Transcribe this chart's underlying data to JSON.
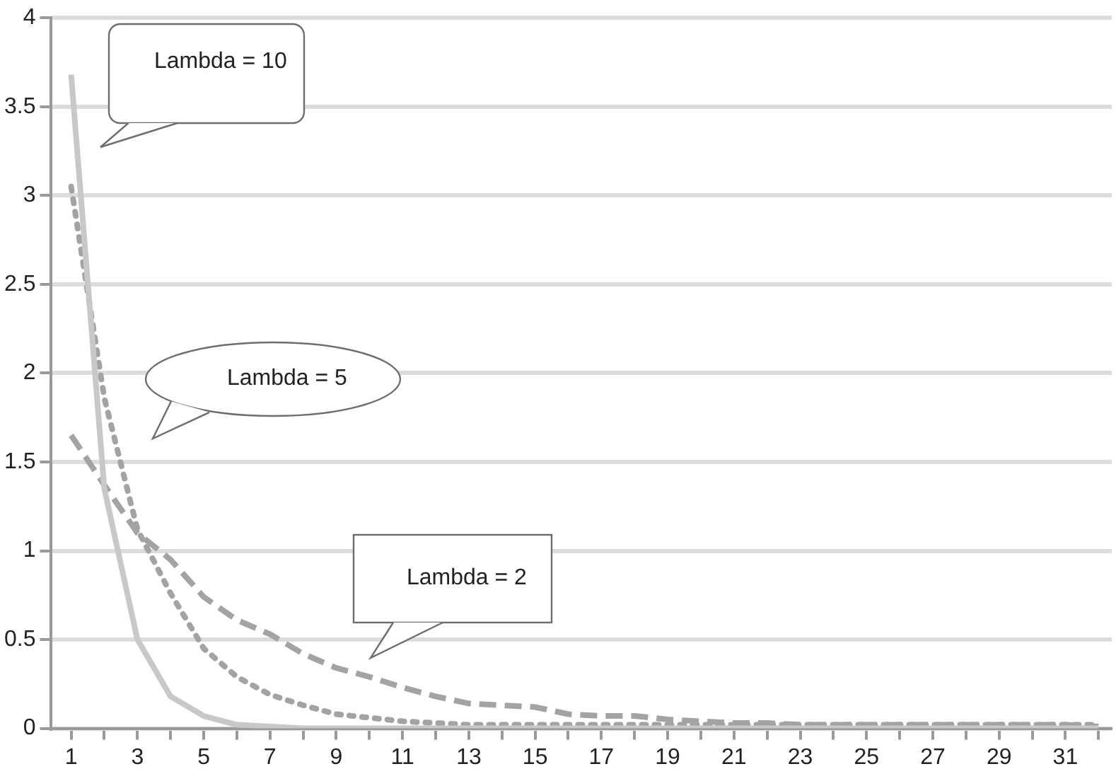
{
  "chart_data": {
    "type": "line",
    "x": [
      1,
      2,
      3,
      4,
      5,
      6,
      7,
      8,
      9,
      10,
      11,
      12,
      13,
      14,
      15,
      16,
      17,
      18,
      19,
      20,
      21,
      22,
      23,
      24,
      25,
      26,
      27,
      28,
      29,
      30,
      31,
      32
    ],
    "xlim": [
      0.4,
      32.4
    ],
    "xticks": [
      1,
      {
        "value": 2,
        "label": null
      },
      3,
      {
        "value": 4,
        "label": null
      },
      5,
      {
        "value": 6,
        "label": null
      },
      7,
      {
        "value": 8,
        "label": null
      },
      9,
      {
        "value": 10,
        "label": null
      },
      11,
      {
        "value": 12,
        "label": null
      },
      13,
      {
        "value": 14,
        "label": null
      },
      15,
      {
        "value": 16,
        "label": null
      },
      17,
      {
        "value": 18,
        "label": null
      },
      19,
      {
        "value": 20,
        "label": null
      },
      21,
      {
        "value": 22,
        "label": null
      },
      23,
      {
        "value": 24,
        "label": null
      },
      25,
      {
        "value": 26,
        "label": null
      },
      27,
      {
        "value": 28,
        "label": null
      },
      29,
      {
        "value": 30,
        "label": null
      },
      31,
      {
        "value": 32,
        "label": null
      }
    ],
    "series": [
      {
        "color": "#c8c8c8",
        "line_style": "solid",
        "values": [
          3.68,
          1.35,
          0.5,
          0.18,
          0.07,
          0.02,
          0.01,
          0,
          0,
          0,
          0,
          0,
          0,
          0,
          0,
          0,
          0,
          0,
          0,
          0,
          0,
          0,
          0,
          0,
          0,
          0,
          0,
          0,
          0,
          0,
          0,
          0
        ]
      },
      {
        "color": "#a3a3a3",
        "line_style": "dotted",
        "values": [
          3.05,
          1.86,
          1.12,
          0.76,
          0.45,
          0.29,
          0.19,
          0.13,
          0.08,
          0.06,
          0.04,
          0.03,
          0.02,
          0.02,
          0.02,
          0.02,
          0.02,
          0.02,
          0.02,
          0.02,
          0.02,
          0.02,
          0.02,
          0.02,
          0.02,
          0.02,
          0.02,
          0.02,
          0.02,
          0.02,
          0.02,
          0.02
        ]
      },
      {
        "color": "#a3a3a3",
        "line_style": "dashed",
        "values": [
          1.65,
          1.37,
          1.1,
          0.95,
          0.74,
          0.61,
          0.53,
          0.42,
          0.34,
          0.29,
          0.23,
          0.18,
          0.14,
          0.13,
          0.12,
          0.08,
          0.07,
          0.07,
          0.05,
          0.04,
          0.03,
          0.03,
          0.02,
          0.02,
          0.02,
          0.02,
          0.02,
          0.02,
          0.02,
          0.02,
          0.02,
          0.01
        ]
      }
    ],
    "ylim": [
      0,
      4
    ],
    "yticks": [
      0,
      0.5,
      1,
      1.5,
      2,
      2.5,
      3,
      3.5,
      4
    ],
    "grid": "y",
    "legend": false,
    "marker": "none",
    "annotations": [
      "Lambda = 10",
      "Lambda = 5",
      "Lambda = 2"
    ]
  }
}
